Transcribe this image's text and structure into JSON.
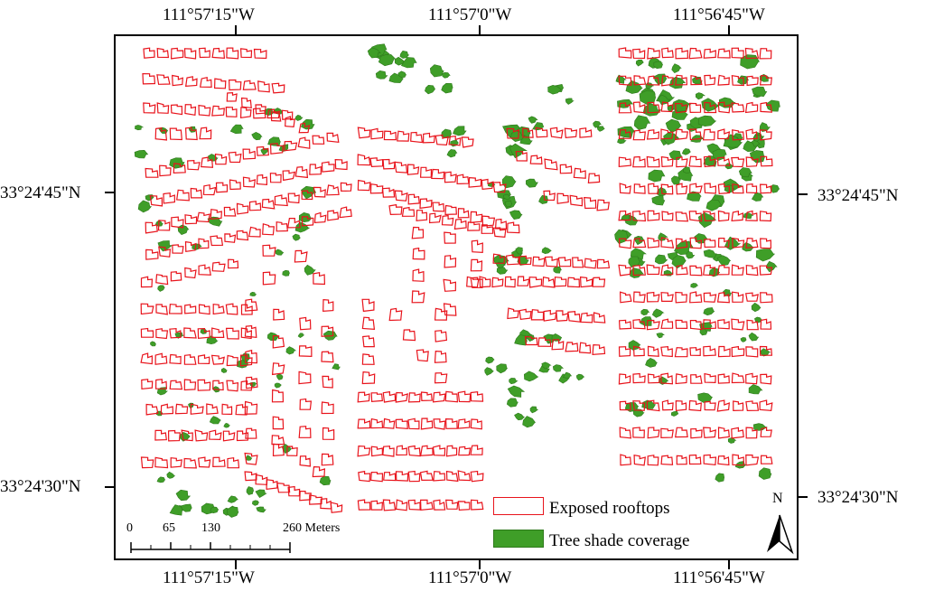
{
  "graticule": {
    "top_lon": [
      "111°57'15\"W",
      "111°57'0\"W",
      "111°56'45\"W"
    ],
    "bottom_lon": [
      "111°57'15\"W",
      "111°57'0\"W",
      "111°56'45\"W"
    ],
    "left_lat": [
      "33°24'45\"N",
      "33°24'30\"N"
    ],
    "right_lat": [
      "33°24'45\"N",
      "33°24'30\"N"
    ]
  },
  "legend": {
    "rooftops_label": "Exposed rooftops",
    "trees_label": "Tree shade coverage"
  },
  "scale_bar": {
    "ticks": [
      "0",
      "65",
      "130",
      "260 Meters"
    ]
  },
  "north_arrow": {
    "label": "N"
  },
  "colors": {
    "rooftop_outline": "#e8141c",
    "tree_fill": "#3f9e28",
    "tree_edge": "#2f7a1c",
    "frame": "#000000"
  }
}
